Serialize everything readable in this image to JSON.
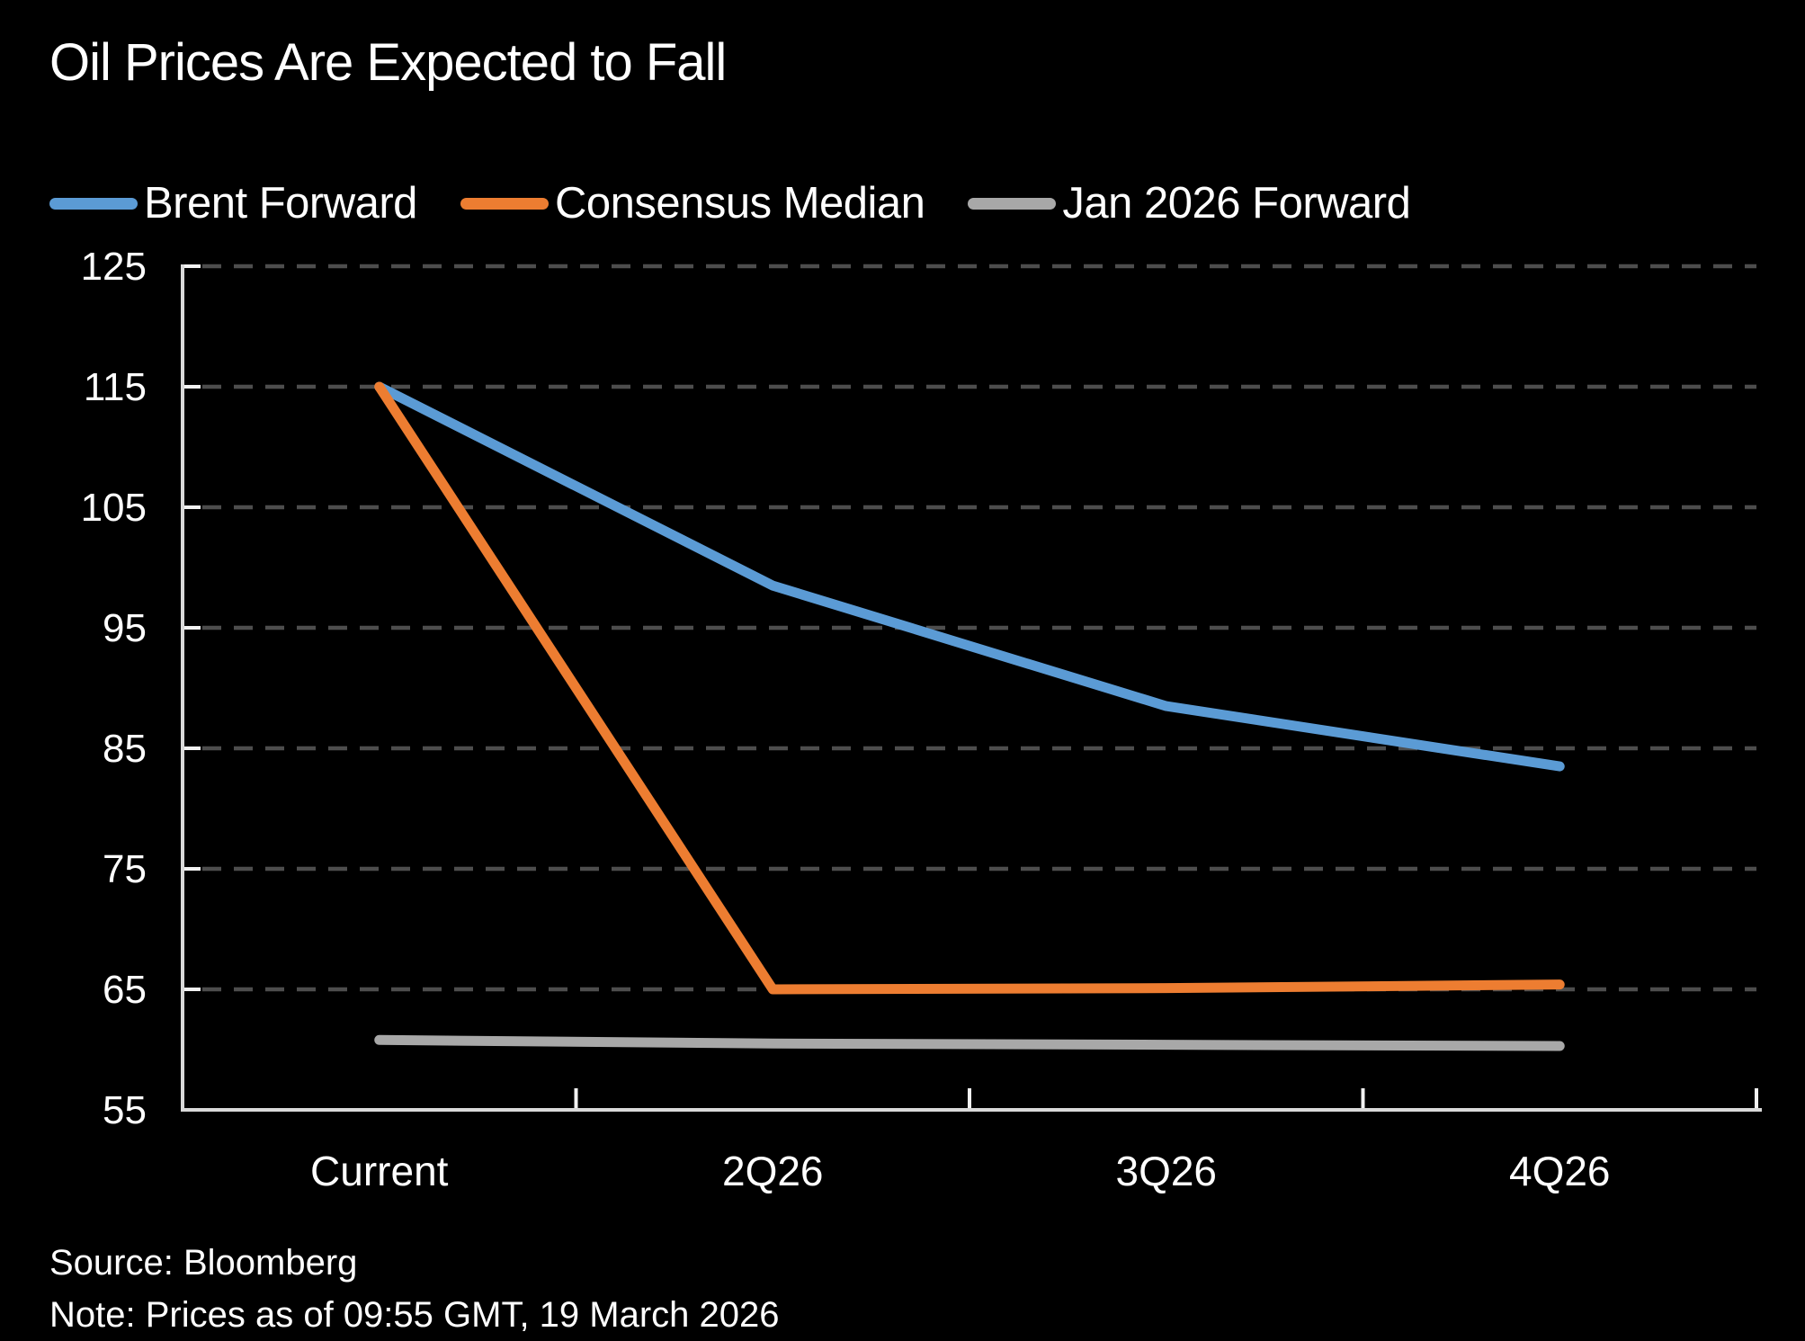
{
  "title": "Oil Prices Are Expected to Fall",
  "footer": {
    "source": "Source: Bloomberg",
    "note": "Note: Prices as of 09:55 GMT, 19 March 2026"
  },
  "colors": {
    "background": "#000000",
    "text": "#ffffff",
    "axis": "#d9d9d9",
    "axis_tick": "#f2f2f2",
    "gridline": "#4d4d4d",
    "brent_forward": "#5b9bd5",
    "consensus_median": "#ed7d31",
    "jan_2026_forward": "#a8a8a8"
  },
  "chart_data": {
    "type": "line",
    "title": "Oil Prices Are Expected to Fall",
    "xlabel": "",
    "ylabel": "",
    "categories": [
      "Current",
      "2Q26",
      "3Q26",
      "4Q26"
    ],
    "series": [
      {
        "name": "Brent Forward",
        "color": "#5b9bd5",
        "values": [
          115,
          98.5,
          88.5,
          83.5
        ]
      },
      {
        "name": "Consensus Median",
        "color": "#ed7d31",
        "values": [
          115,
          65.0,
          65.1,
          65.4
        ]
      },
      {
        "name": "Jan 2026 Forward",
        "color": "#a8a8a8",
        "values": [
          60.8,
          60.5,
          60.4,
          60.3
        ]
      }
    ],
    "yticks": [
      55,
      65,
      75,
      85,
      95,
      105,
      115,
      125
    ],
    "ylim": [
      55,
      125
    ],
    "grid": "dashed-horizontal",
    "legend_position": "top-left"
  }
}
